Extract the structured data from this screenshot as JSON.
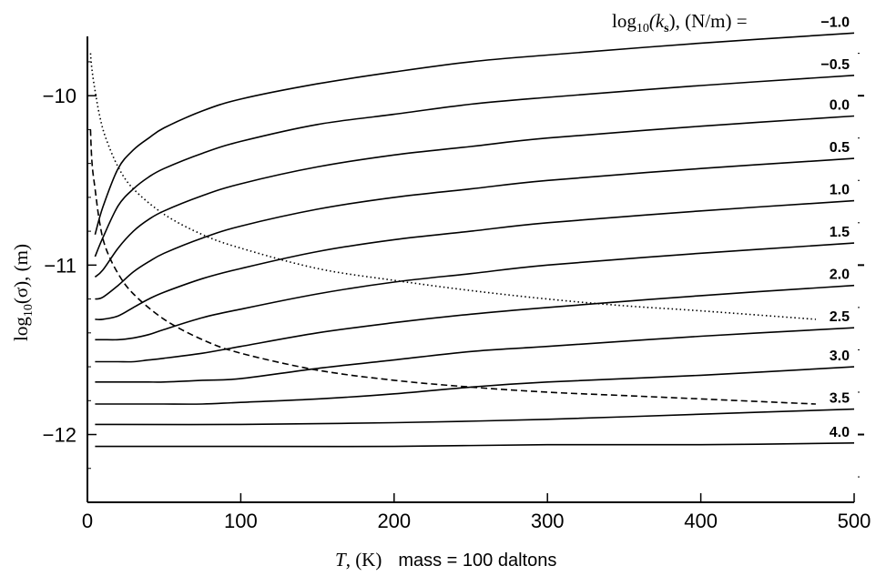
{
  "chart_data": {
    "type": "line",
    "title": "",
    "legend_title": {
      "prefix": "log",
      "sub": "10",
      "var": "(k",
      "var_sub": "s",
      "suffix": "), (N/m) ="
    },
    "xlabel": {
      "var": "T",
      "unit": ", (K)",
      "note": "mass = 100 daltons"
    },
    "ylabel": {
      "prefix": "log",
      "sub": "10",
      "rest": "(σ), (m)"
    },
    "xlim": [
      0,
      500
    ],
    "ylim": [
      -12.4,
      -9.65
    ],
    "x_ticks": [
      0,
      100,
      200,
      300,
      400,
      500
    ],
    "x_tick_labels": [
      "0",
      "100",
      "200",
      "300",
      "400",
      "500"
    ],
    "y_ticks": [
      -12,
      -11,
      -10
    ],
    "y_tick_labels": [
      "−12",
      "−11",
      "−10"
    ],
    "grid": false,
    "series": [
      {
        "name": "-1.0",
        "label": "−1.0",
        "style": "solid",
        "x": [
          5,
          10,
          20,
          30,
          40,
          50,
          75,
          100,
          150,
          200,
          250,
          300,
          400,
          500
        ],
        "y": [
          -10.82,
          -10.66,
          -10.43,
          -10.32,
          -10.25,
          -10.19,
          -10.09,
          -10.02,
          -9.93,
          -9.86,
          -9.8,
          -9.76,
          -9.69,
          -9.63
        ]
      },
      {
        "name": "-0.5",
        "label": "−0.5",
        "style": "solid",
        "x": [
          5,
          10,
          20,
          30,
          40,
          50,
          75,
          100,
          150,
          200,
          250,
          300,
          400,
          500
        ],
        "y": [
          -10.95,
          -10.84,
          -10.65,
          -10.55,
          -10.48,
          -10.43,
          -10.34,
          -10.27,
          -10.17,
          -10.11,
          -10.05,
          -10.01,
          -9.94,
          -9.88
        ]
      },
      {
        "name": "0.0",
        "label": "0.0",
        "style": "solid",
        "x": [
          5,
          10,
          20,
          30,
          40,
          50,
          75,
          100,
          150,
          200,
          250,
          300,
          400,
          500
        ],
        "y": [
          -11.07,
          -11.03,
          -10.9,
          -10.8,
          -10.73,
          -10.68,
          -10.59,
          -10.52,
          -10.42,
          -10.35,
          -10.3,
          -10.25,
          -10.18,
          -10.12
        ]
      },
      {
        "name": "0.5",
        "label": "0.5",
        "style": "solid",
        "x": [
          5,
          10,
          20,
          30,
          40,
          50,
          75,
          100,
          150,
          200,
          250,
          300,
          400,
          500
        ],
        "y": [
          -11.2,
          -11.19,
          -11.12,
          -11.04,
          -10.98,
          -10.93,
          -10.84,
          -10.77,
          -10.67,
          -10.6,
          -10.55,
          -10.5,
          -10.43,
          -10.37
        ]
      },
      {
        "name": "1.0",
        "label": "1.0",
        "style": "solid",
        "x": [
          5,
          10,
          20,
          30,
          40,
          50,
          75,
          100,
          150,
          200,
          250,
          300,
          400,
          500
        ],
        "y": [
          -11.32,
          -11.32,
          -11.3,
          -11.25,
          -11.2,
          -11.16,
          -11.08,
          -11.02,
          -10.92,
          -10.85,
          -10.8,
          -10.75,
          -10.68,
          -10.62
        ]
      },
      {
        "name": "1.5",
        "label": "1.5",
        "style": "solid",
        "x": [
          5,
          10,
          20,
          30,
          40,
          50,
          75,
          100,
          150,
          200,
          250,
          300,
          400,
          500
        ],
        "y": [
          -11.44,
          -11.44,
          -11.44,
          -11.43,
          -11.41,
          -11.38,
          -11.31,
          -11.26,
          -11.17,
          -11.1,
          -11.05,
          -11.0,
          -10.93,
          -10.87
        ]
      },
      {
        "name": "2.0",
        "label": "2.0",
        "style": "solid",
        "x": [
          5,
          10,
          20,
          30,
          40,
          50,
          75,
          100,
          150,
          200,
          250,
          300,
          400,
          500
        ],
        "y": [
          -11.57,
          -11.57,
          -11.57,
          -11.57,
          -11.56,
          -11.55,
          -11.52,
          -11.48,
          -11.4,
          -11.34,
          -11.29,
          -11.25,
          -11.18,
          -11.12
        ]
      },
      {
        "name": "2.5",
        "label": "2.5",
        "style": "solid",
        "x": [
          5,
          10,
          20,
          30,
          40,
          50,
          75,
          100,
          150,
          200,
          250,
          300,
          400,
          500
        ],
        "y": [
          -11.69,
          -11.69,
          -11.69,
          -11.69,
          -11.69,
          -11.69,
          -11.68,
          -11.67,
          -11.61,
          -11.56,
          -11.51,
          -11.48,
          -11.42,
          -11.37
        ]
      },
      {
        "name": "3.0",
        "label": "3.0",
        "style": "solid",
        "x": [
          5,
          10,
          20,
          30,
          40,
          50,
          75,
          100,
          150,
          200,
          250,
          300,
          400,
          500
        ],
        "y": [
          -11.82,
          -11.82,
          -11.82,
          -11.82,
          -11.82,
          -11.82,
          -11.82,
          -11.81,
          -11.79,
          -11.76,
          -11.72,
          -11.69,
          -11.65,
          -11.6
        ]
      },
      {
        "name": "3.5",
        "label": "3.5",
        "style": "solid",
        "x": [
          5,
          100,
          200,
          300,
          400,
          500
        ],
        "y": [
          -11.94,
          -11.94,
          -11.93,
          -11.91,
          -11.88,
          -11.85
        ]
      },
      {
        "name": "4.0",
        "label": "4.0",
        "style": "solid",
        "x": [
          5,
          100,
          200,
          300,
          400,
          500
        ],
        "y": [
          -12.07,
          -12.07,
          -12.07,
          -12.06,
          -12.06,
          -12.05
        ]
      },
      {
        "name": "dotted curve",
        "label": "",
        "style": "dotted",
        "x": [
          2,
          3,
          5,
          8,
          12,
          20,
          30,
          50,
          75,
          100,
          150,
          200,
          250,
          300,
          350,
          400,
          475
        ],
        "y": [
          -9.75,
          -9.85,
          -9.97,
          -10.12,
          -10.25,
          -10.42,
          -10.55,
          -10.7,
          -10.82,
          -10.9,
          -11.02,
          -11.09,
          -11.15,
          -11.2,
          -11.24,
          -11.27,
          -11.32
        ]
      },
      {
        "name": "dashed curve",
        "label": "",
        "style": "dashed",
        "x": [
          2,
          3,
          5,
          8,
          12,
          20,
          30,
          50,
          75,
          100,
          150,
          200,
          250,
          300,
          350,
          400,
          475
        ],
        "y": [
          -10.2,
          -10.4,
          -10.55,
          -10.75,
          -10.9,
          -11.05,
          -11.17,
          -11.32,
          -11.44,
          -11.52,
          -11.62,
          -11.68,
          -11.72,
          -11.75,
          -11.77,
          -11.79,
          -11.82
        ]
      }
    ]
  }
}
